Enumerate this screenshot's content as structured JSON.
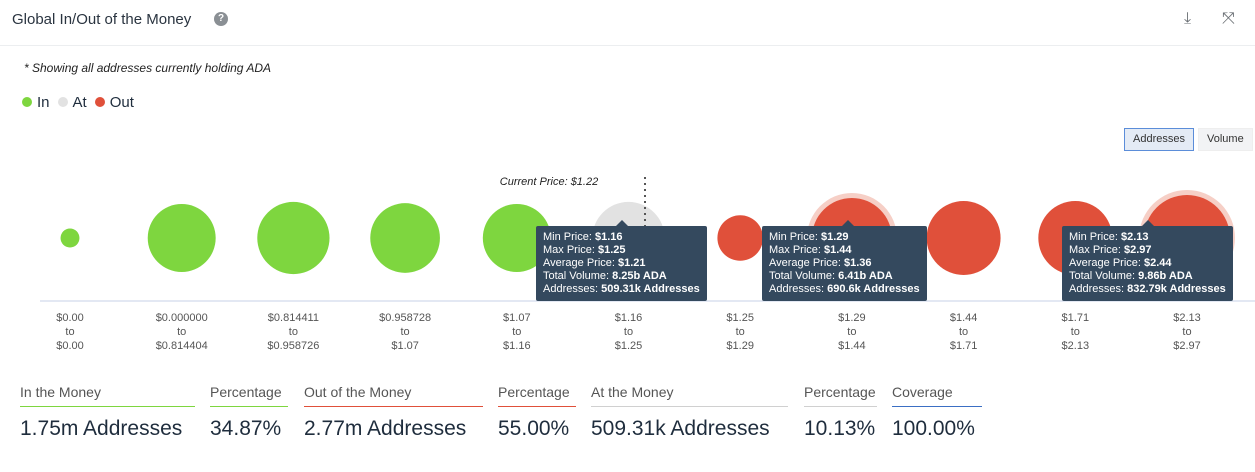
{
  "header": {
    "title": "Global In/Out of the Money",
    "help_icon": "question-circle-icon",
    "download_icon": "download-icon",
    "expand_icon": "expand-icon"
  },
  "note": "* Showing all addresses currently holding ADA",
  "legend": [
    {
      "label": "In",
      "color": "#7ed63f"
    },
    {
      "label": "At",
      "color": "#e2e2e2"
    },
    {
      "label": "Out",
      "color": "#e0503a"
    }
  ],
  "toggles": {
    "addresses": "Addresses",
    "volume": "Volume"
  },
  "chart_data": {
    "type": "bubble",
    "current_price_label": "Current Price: $1.22",
    "categories": [
      {
        "from": "$0.00",
        "to": "$0.00",
        "status": "in",
        "relative_size": 0.22
      },
      {
        "from": "$0.000000",
        "to": "$0.814404",
        "status": "in",
        "relative_size": 0.79
      },
      {
        "from": "$0.814411",
        "to": "$0.958726",
        "status": "in",
        "relative_size": 0.84
      },
      {
        "from": "$0.958728",
        "to": "$1.07",
        "status": "in",
        "relative_size": 0.81
      },
      {
        "from": "$1.07",
        "to": "$1.16",
        "status": "in",
        "relative_size": 0.79
      },
      {
        "from": "$1.16",
        "to": "$1.25",
        "status": "at",
        "relative_size": 0.84
      },
      {
        "from": "$1.25",
        "to": "$1.29",
        "status": "out",
        "relative_size": 0.53
      },
      {
        "from": "$1.29",
        "to": "$1.44",
        "status": "out",
        "relative_size": 0.93,
        "highlight": true
      },
      {
        "from": "$1.44",
        "to": "$1.71",
        "status": "out",
        "relative_size": 0.86
      },
      {
        "from": "$1.71",
        "to": "$2.13",
        "status": "out",
        "relative_size": 0.86
      },
      {
        "from": "$2.13",
        "to": "$2.97",
        "status": "out",
        "relative_size": 1.0,
        "highlight": true
      }
    ],
    "tooltips": [
      {
        "min": "$1.16",
        "max": "$1.25",
        "avg": "$1.21",
        "volume": "8.25b ADA",
        "addresses": "509.31k Addresses"
      },
      {
        "min": "$1.29",
        "max": "$1.44",
        "avg": "$1.36",
        "volume": "6.41b ADA",
        "addresses": "690.6k Addresses"
      },
      {
        "min": "$2.13",
        "max": "$2.97",
        "avg": "$2.44",
        "volume": "9.86b ADA",
        "addresses": "832.79k Addresses"
      }
    ],
    "tooltip_labels": {
      "min": "Min Price: ",
      "max": "Max Price: ",
      "avg": "Average Price: ",
      "volume": "Total Volume: ",
      "addresses": "Addresses: "
    },
    "to_word": "to"
  },
  "stats": [
    {
      "label": "In the Money",
      "value": "1.75m Addresses",
      "color": "#7ed63f"
    },
    {
      "label": "Percentage",
      "value": "34.87%",
      "color": "#7ed63f"
    },
    {
      "label": "Out of the Money",
      "value": "2.77m Addresses",
      "color": "#e0503a"
    },
    {
      "label": "Percentage",
      "value": "55.00%",
      "color": "#e0503a"
    },
    {
      "label": "At the Money",
      "value": "509.31k Addresses",
      "color": "#d0d0d0"
    },
    {
      "label": "Percentage",
      "value": "10.13%",
      "color": "#d0d0d0"
    },
    {
      "label": "Coverage",
      "value": "100.00%",
      "color": "#3b6fc4"
    }
  ]
}
